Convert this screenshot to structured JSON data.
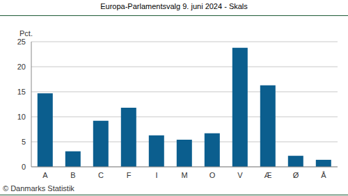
{
  "chart_data": {
    "type": "bar",
    "title": "Europa-Parlamentsvalg 9. juni 2024 - Skals",
    "y_label": "Pct.",
    "annotation": "© Danmarks Statistik",
    "categories": [
      "A",
      "B",
      "C",
      "F",
      "I",
      "M",
      "O",
      "V",
      "Æ",
      "Ø",
      "Å"
    ],
    "values": [
      14.7,
      3.1,
      9.2,
      11.8,
      6.3,
      5.4,
      6.7,
      23.8,
      16.3,
      2.2,
      1.4
    ],
    "color": "#0b5e8e",
    "ylim": [
      0,
      25
    ],
    "yticks": [
      0,
      5,
      10,
      15,
      20,
      25
    ],
    "grid": true
  }
}
